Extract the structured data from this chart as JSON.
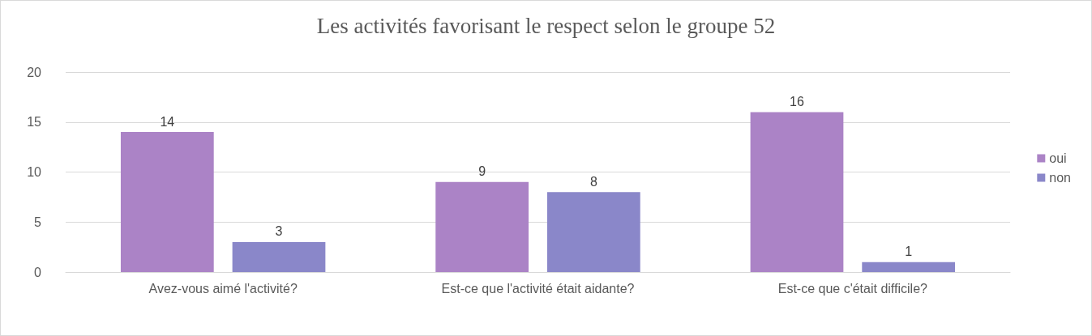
{
  "chart_data": {
    "type": "bar",
    "title": "Les activités favorisant le respect selon le groupe 52",
    "categories": [
      "Avez-vous aimé l'activité?",
      "Est-ce que l'activité était aidante?",
      "Est-ce que c'était difficile?"
    ],
    "series": [
      {
        "name": "oui",
        "color": "#ab83c6",
        "values": [
          14,
          9,
          16
        ]
      },
      {
        "name": "non",
        "color": "#8a87c9",
        "values": [
          3,
          8,
          1
        ]
      }
    ],
    "ylim": [
      0,
      20
    ],
    "yticks": [
      0,
      5,
      10,
      15,
      20
    ],
    "grid": "y",
    "legend": "right",
    "data_labels": true
  }
}
